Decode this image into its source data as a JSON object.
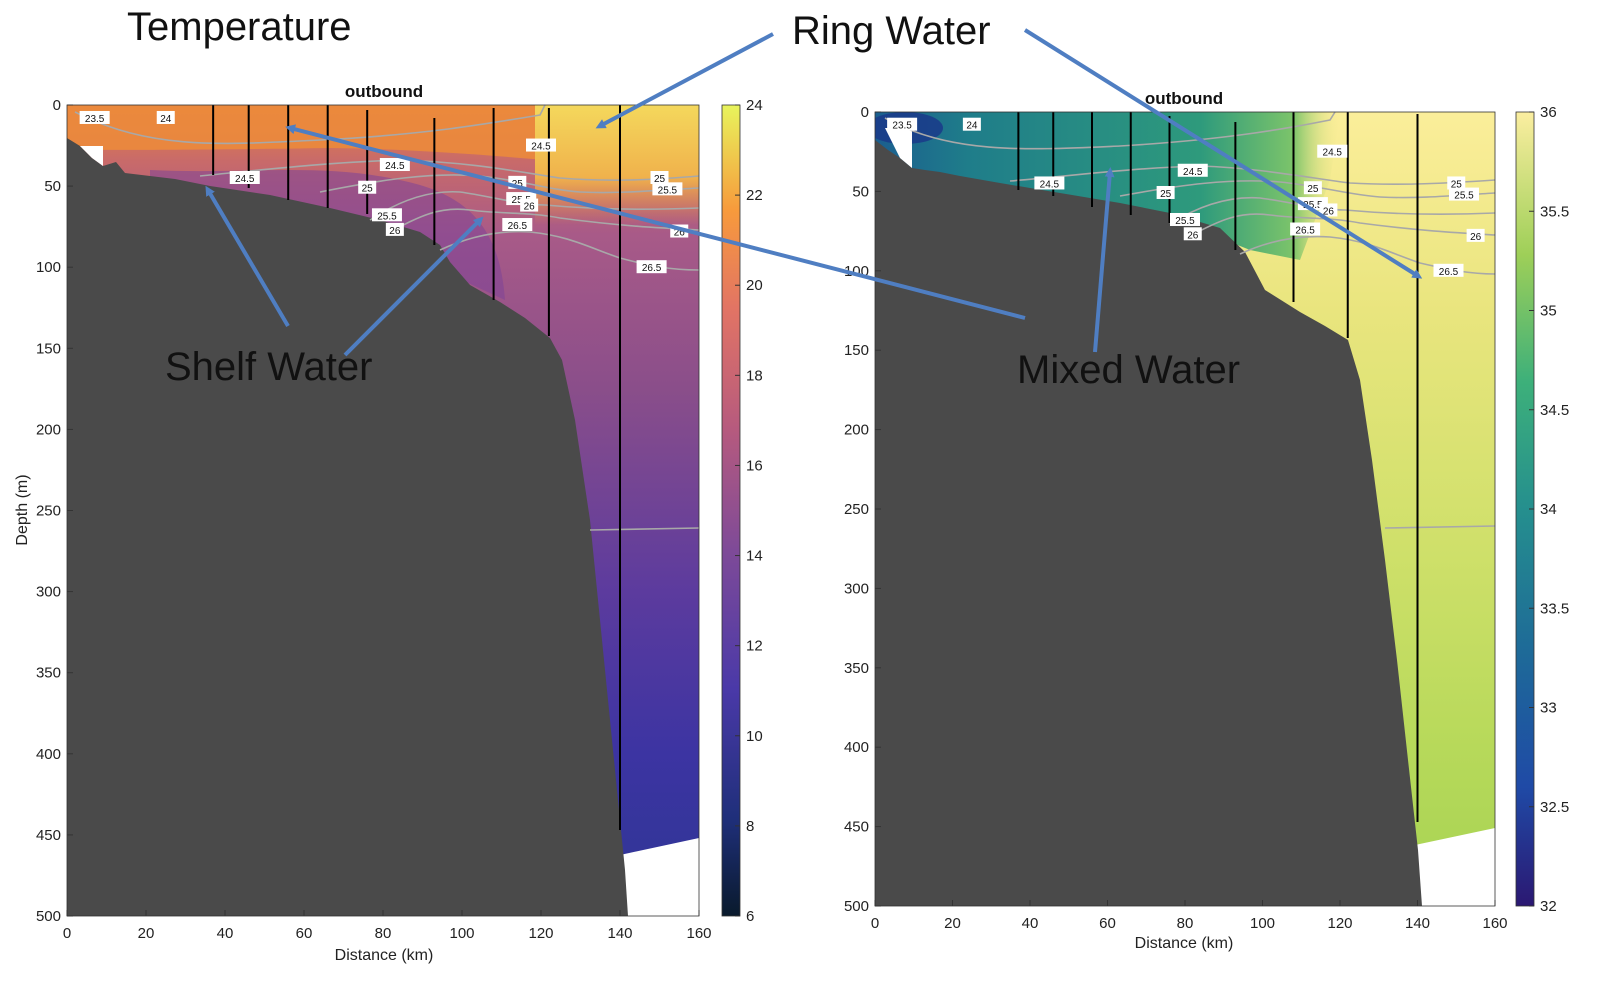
{
  "annotations": {
    "temperature": "Temperature",
    "ring_water": "Ring Water",
    "shelf_water": "Shelf Water",
    "mixed_water": "Mixed Water"
  },
  "colors": {
    "bathymetry": "#4a4a4a",
    "arrow": "#4f7ec2",
    "isopycnal": "#a8a8a8",
    "station": "#000000"
  },
  "chart_data": [
    {
      "type": "heatmap",
      "panel": "temperature",
      "title": "outbound",
      "xlabel": "Distance (km)",
      "ylabel": "Depth (m)",
      "xlim": [
        0,
        160
      ],
      "ylim": [
        0,
        500
      ],
      "y_reversed": true,
      "x_ticks": [
        "0",
        "20",
        "40",
        "60",
        "80",
        "100",
        "120",
        "140",
        "160"
      ],
      "y_ticks": [
        "0",
        "50",
        "100",
        "150",
        "200",
        "250",
        "300",
        "350",
        "400",
        "450",
        "500"
      ],
      "colorbar": {
        "min": 6,
        "max": 24,
        "ticks": [
          "6",
          "8",
          "10",
          "12",
          "14",
          "16",
          "18",
          "20",
          "22",
          "24"
        ]
      },
      "stations_km": [
        37,
        46,
        56,
        66,
        76,
        93,
        108,
        122,
        140
      ],
      "contour_labels": [
        {
          "text": "23.5",
          "x": 7,
          "y": 8
        },
        {
          "text": "24",
          "x": 25,
          "y": 8
        },
        {
          "text": "24.5",
          "x": 120,
          "y": 25
        },
        {
          "text": "24.5",
          "x": 83,
          "y": 37
        },
        {
          "text": "24.5",
          "x": 45,
          "y": 45
        },
        {
          "text": "25",
          "x": 76,
          "y": 51
        },
        {
          "text": "25",
          "x": 150,
          "y": 45
        },
        {
          "text": "25.5",
          "x": 152,
          "y": 52
        },
        {
          "text": "25",
          "x": 114,
          "y": 48
        },
        {
          "text": "25.5",
          "x": 115,
          "y": 58
        },
        {
          "text": "26",
          "x": 117,
          "y": 62
        },
        {
          "text": "25.5",
          "x": 81,
          "y": 68
        },
        {
          "text": "26",
          "x": 83,
          "y": 77
        },
        {
          "text": "26.5",
          "x": 114,
          "y": 74
        },
        {
          "text": "26",
          "x": 155,
          "y": 78
        },
        {
          "text": "26.5",
          "x": 148,
          "y": 100
        }
      ]
    },
    {
      "type": "heatmap",
      "panel": "salinity",
      "title": "outbound",
      "xlabel": "Distance (km)",
      "ylabel": "",
      "xlim": [
        0,
        160
      ],
      "ylim": [
        0,
        500
      ],
      "y_reversed": true,
      "x_ticks": [
        "0",
        "20",
        "40",
        "60",
        "80",
        "100",
        "120",
        "140",
        "160"
      ],
      "y_ticks": [
        "0",
        "50",
        "100",
        "150",
        "200",
        "250",
        "300",
        "350",
        "400",
        "450",
        "500"
      ],
      "colorbar": {
        "min": 32,
        "max": 36,
        "ticks": [
          "32",
          "32.5",
          "33",
          "33.5",
          "34",
          "34.5",
          "35",
          "35.5",
          "36"
        ]
      },
      "stations_km": [
        37,
        46,
        56,
        66,
        76,
        93,
        108,
        122,
        140
      ],
      "contour_labels": [
        {
          "text": "23.5",
          "x": 7,
          "y": 8
        },
        {
          "text": "24",
          "x": 25,
          "y": 8
        },
        {
          "text": "24.5",
          "x": 118,
          "y": 25
        },
        {
          "text": "24.5",
          "x": 82,
          "y": 37
        },
        {
          "text": "24.5",
          "x": 45,
          "y": 45
        },
        {
          "text": "25",
          "x": 75,
          "y": 51
        },
        {
          "text": "25",
          "x": 150,
          "y": 45
        },
        {
          "text": "25.5",
          "x": 152,
          "y": 52
        },
        {
          "text": "25",
          "x": 113,
          "y": 48
        },
        {
          "text": "25.5",
          "x": 113,
          "y": 58
        },
        {
          "text": "26",
          "x": 117,
          "y": 62
        },
        {
          "text": "25.5",
          "x": 80,
          "y": 68
        },
        {
          "text": "26",
          "x": 82,
          "y": 77
        },
        {
          "text": "26.5",
          "x": 111,
          "y": 74
        },
        {
          "text": "26",
          "x": 155,
          "y": 78
        },
        {
          "text": "26.5",
          "x": 148,
          "y": 100
        }
      ]
    }
  ]
}
